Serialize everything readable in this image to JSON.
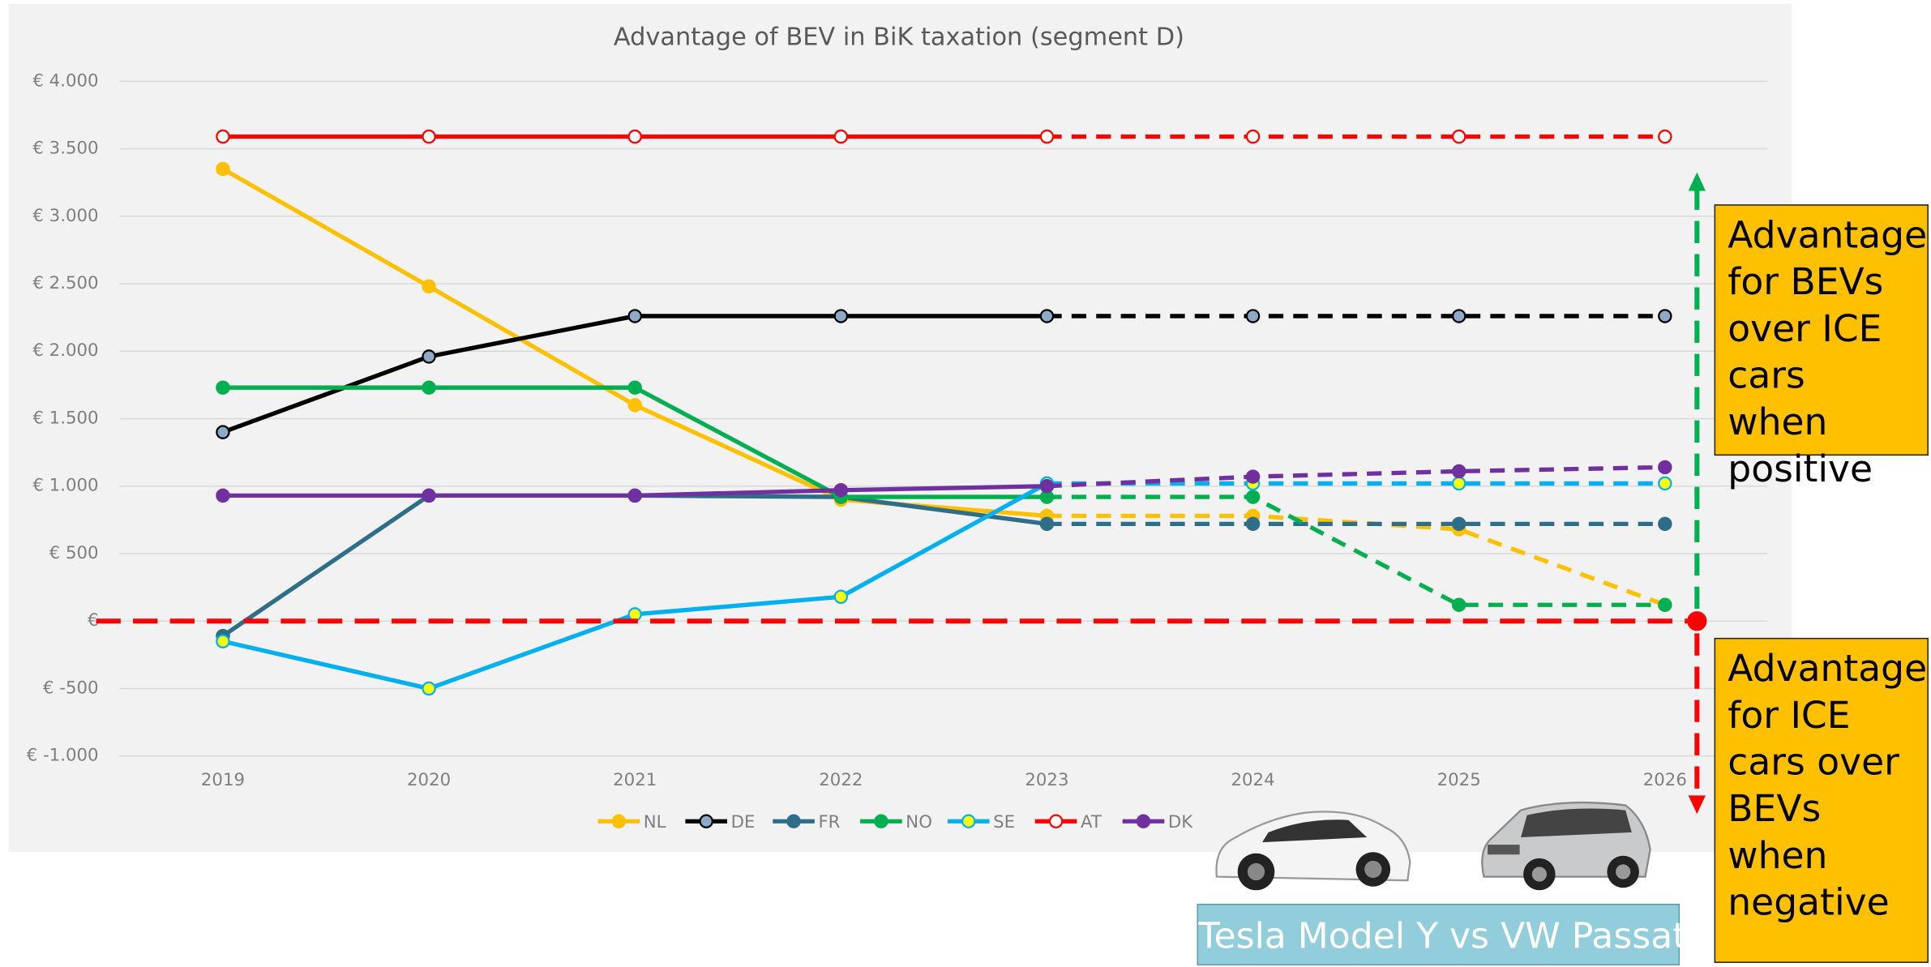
{
  "chart_data": {
    "type": "line",
    "title": "Advantage of BEV in BiK taxation (segment D)",
    "categories": [
      "2019",
      "2020",
      "2021",
      "2022",
      "2023",
      "2024",
      "2025",
      "2026"
    ],
    "dashed_from": "2023",
    "series": [
      {
        "name": "NL",
        "color": "#ffc000",
        "marker_fill": "#ffc000",
        "values": [
          3350,
          2480,
          1600,
          900,
          780,
          780,
          680,
          120
        ]
      },
      {
        "name": "DE",
        "color": "#000000",
        "marker_fill": "#8eaac9",
        "values": [
          1400,
          1960,
          2260,
          2260,
          2260,
          2260,
          2260,
          2260
        ]
      },
      {
        "name": "FR",
        "color": "#2e6e88",
        "marker_fill": "#2e6e88",
        "values": [
          -110,
          930,
          930,
          920,
          720,
          720,
          720,
          720
        ]
      },
      {
        "name": "NO",
        "color": "#00b050",
        "marker_fill": "#00b050",
        "values": [
          1730,
          1730,
          1730,
          920,
          920,
          920,
          120,
          120
        ]
      },
      {
        "name": "SE",
        "color": "#00b0f0",
        "marker_fill": "#ffff00",
        "values": [
          -150,
          -500,
          50,
          180,
          1020,
          1020,
          1020,
          1020
        ]
      },
      {
        "name": "AT",
        "color": "#ff0000",
        "marker_fill": "#ffffff",
        "values": [
          3590,
          3590,
          3590,
          3590,
          3590,
          3590,
          3590,
          3590
        ]
      },
      {
        "name": "DK",
        "color": "#7030a0",
        "marker_fill": "#7030a0",
        "values": [
          930,
          930,
          930,
          970,
          1000,
          1070,
          1110,
          1140
        ]
      }
    ],
    "ylim": [
      -1000,
      4000
    ],
    "yticks": [
      {
        "value": -1000,
        "label": "€ -1.000"
      },
      {
        "value": -500,
        "label": "€ -500"
      },
      {
        "value": 0,
        "label": "€"
      },
      {
        "value": 500,
        "label": "€ 500"
      },
      {
        "value": 1000,
        "label": "€ 1.000"
      },
      {
        "value": 1500,
        "label": "€ 1.500"
      },
      {
        "value": 2000,
        "label": "€ 2.000"
      },
      {
        "value": 2500,
        "label": "€ 2.500"
      },
      {
        "value": 3000,
        "label": "€ 3.000"
      },
      {
        "value": 3500,
        "label": "€ 3.500"
      },
      {
        "value": 4000,
        "label": "€ 4.000"
      }
    ],
    "grid": true,
    "legend": "bottom",
    "annotations": [
      "Advantage for BEVs over ICE cars when positive",
      "Advantage for ICE cars over BEVs when negative",
      "Tesla Model Y vs VW Passat"
    ]
  }
}
